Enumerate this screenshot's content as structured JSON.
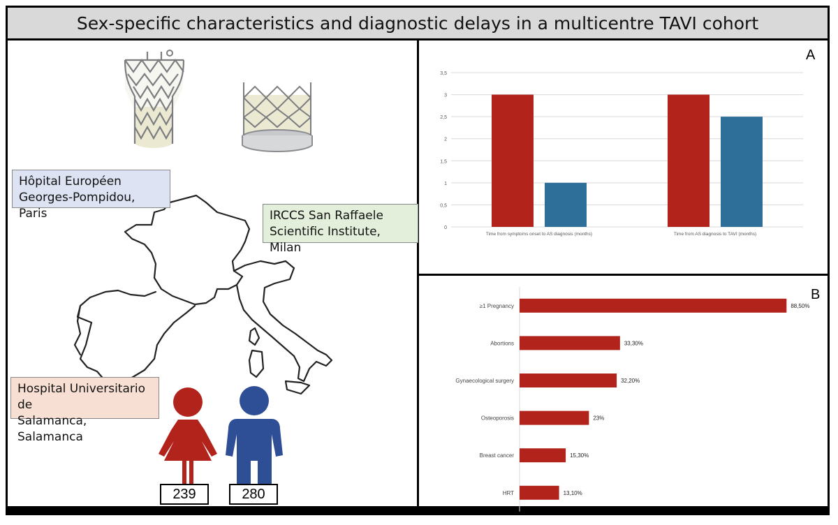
{
  "title": "Sex-specific characteristics and diagnostic delays in a multicentre TAVI cohort",
  "sites": {
    "paris": [
      "Hôpital Européen",
      "Georges-Pompidou, Paris"
    ],
    "milan": [
      "IRCCS San Raffaele",
      "Scientific Institute, Milan"
    ],
    "salamanca": [
      "Hospital Universitario de",
      "Salamanca, Salamanca"
    ]
  },
  "counts": {
    "women": "239",
    "men": "280"
  },
  "panels": {
    "a": "A",
    "b": "B"
  },
  "colors": {
    "female": "#b2241b",
    "male": "#2e6f9a",
    "bar_b": "#b2241b"
  },
  "chart_data": [
    {
      "type": "bar",
      "panel": "A",
      "categories": [
        "Time from symptoms onset to AS diagnosis (months)",
        "Time from AS diagnosis  to TAVI (months)"
      ],
      "series": [
        {
          "name": "Women",
          "values": [
            3,
            3
          ]
        },
        {
          "name": "Men",
          "values": [
            1,
            2.5
          ]
        }
      ],
      "yticks": [
        "0",
        "0,5",
        "1",
        "1,5",
        "2",
        "2,5",
        "3",
        "3,5"
      ],
      "ylim": [
        0,
        3.5
      ],
      "grid": true
    },
    {
      "type": "bar",
      "orientation": "horizontal",
      "panel": "B",
      "categories": [
        "≥1 Pregnancy",
        "Abortions",
        "Gynaecological surgery",
        "Osteoporosis",
        "Breast cancer",
        "HRT"
      ],
      "values": [
        88.5,
        33.3,
        32.2,
        23,
        15.3,
        13.1
      ],
      "labels": [
        "88,50%",
        "33,30%",
        "32,20%",
        "23%",
        "15,30%",
        "13,10%"
      ],
      "xlim": [
        0,
        100
      ]
    }
  ]
}
